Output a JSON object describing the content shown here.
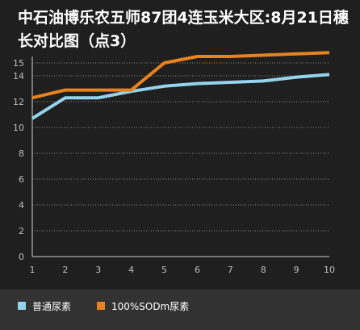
{
  "title": "中石油博乐农五师87团4连玉米大区:8月21日穗长对比图（点3）",
  "colors": {
    "background": "#1f1f1f",
    "legend_bg": "#323232"
  },
  "chart_data": {
    "type": "line",
    "title": "中石油博乐农五师87团4连玉米大区:8月21日穗长对比图（点3）",
    "x": [
      1,
      2,
      3,
      4,
      5,
      6,
      7,
      8,
      9,
      10
    ],
    "ylim": [
      0,
      15.5
    ],
    "yticks": [
      0,
      2,
      4,
      6,
      8,
      10,
      12,
      14,
      15
    ],
    "grid": true,
    "legend_position": "bottom",
    "series": [
      {
        "name": "普通尿素",
        "color": "#93d4ec",
        "values": [
          10.7,
          12.3,
          12.3,
          12.8,
          13.2,
          13.4,
          13.5,
          13.6,
          13.9,
          14.1
        ]
      },
      {
        "name": "100%SODm尿素",
        "color": "#e8821e",
        "values": [
          12.3,
          12.9,
          12.9,
          12.9,
          15.0,
          15.5,
          15.5,
          15.6,
          15.7,
          15.8
        ]
      }
    ]
  }
}
